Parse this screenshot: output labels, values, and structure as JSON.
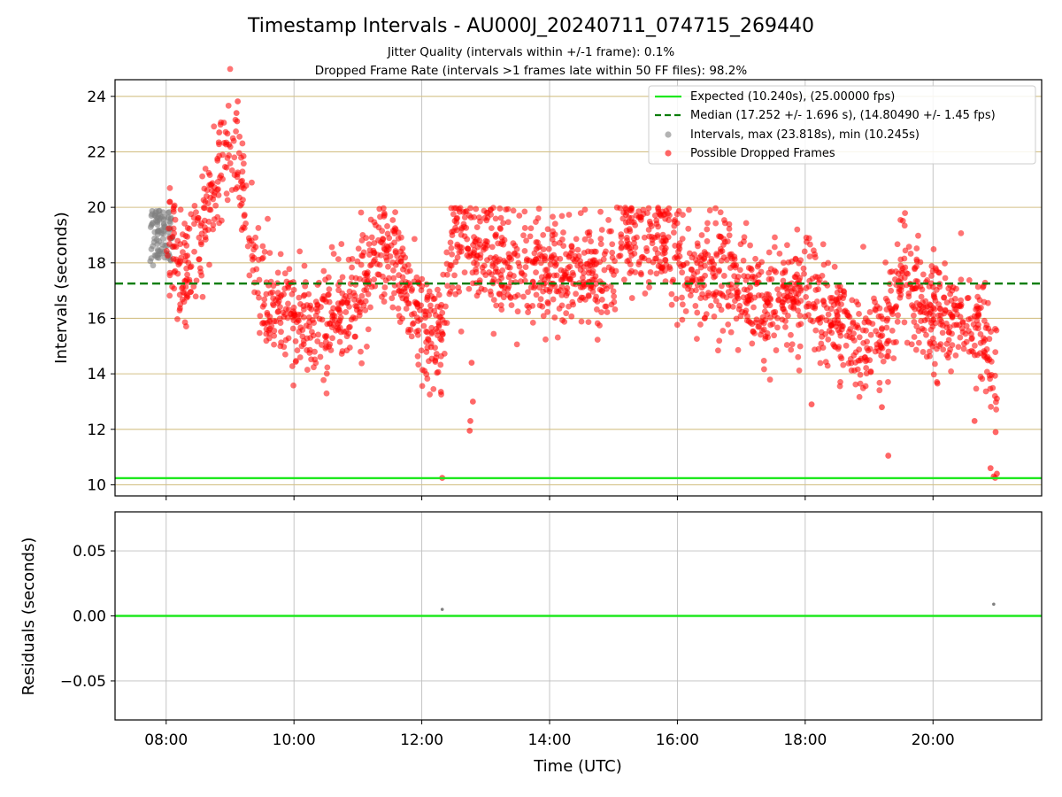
{
  "chart_data": [
    {
      "type": "scatter",
      "title": "Timestamp Intervals - AU000J_20240711_074715_269440",
      "subtitles": [
        "Jitter Quality (intervals within +/-1 frame): 0.1%",
        "Dropped Frame Rate (intervals >1 frames late within 50 FF files): 98.2%"
      ],
      "xlabel": "",
      "ylabel": "Intervals (seconds)",
      "x_unit": "hours UTC",
      "xlim": [
        7.2,
        21.7
      ],
      "ylim": [
        9.6,
        24.6
      ],
      "yticks": [
        10,
        12,
        14,
        16,
        18,
        20,
        22,
        24
      ],
      "ytick_labels": [
        "10",
        "12",
        "14",
        "16",
        "18",
        "20",
        "22",
        "24"
      ],
      "hlines": [
        {
          "name": "Expected (10.240s), (25.00000 fps)",
          "y": 10.24,
          "color": "#1ee81e",
          "style": "solid"
        },
        {
          "name": "Median (17.252 +/- 1.696 s), (14.80490 +/- 1.45 fps)",
          "y": 17.252,
          "color": "#0a7d0a",
          "style": "dashed"
        }
      ],
      "series": [
        {
          "name": "Intervals, max (23.818s), min (10.245s)",
          "color": "#808080",
          "x_range": [
            7.75,
            8.1
          ],
          "y_range": [
            17.9,
            19.9
          ]
        },
        {
          "name": "Possible Dropped Frames",
          "color": "#ff0000",
          "trend": [
            [
              8.0,
              19.2
            ],
            [
              8.25,
              17.5
            ],
            [
              8.5,
              18.6
            ],
            [
              8.75,
              20.8
            ],
            [
              8.9,
              21.6
            ],
            [
              9.1,
              21.9
            ],
            [
              9.3,
              19.0
            ],
            [
              9.5,
              17.0
            ],
            [
              10.0,
              16.0
            ],
            [
              10.5,
              15.8
            ],
            [
              11.0,
              16.7
            ],
            [
              11.3,
              18.4
            ],
            [
              11.6,
              17.7
            ],
            [
              12.0,
              16.0
            ],
            [
              12.3,
              15.3
            ],
            [
              12.5,
              18.8
            ],
            [
              13.0,
              18.6
            ],
            [
              13.5,
              17.9
            ],
            [
              14.0,
              17.5
            ],
            [
              14.5,
              17.8
            ],
            [
              15.0,
              17.2
            ],
            [
              15.2,
              19.0
            ],
            [
              15.8,
              18.8
            ],
            [
              16.3,
              17.5
            ],
            [
              16.8,
              17.8
            ],
            [
              17.2,
              16.8
            ],
            [
              17.6,
              16.5
            ],
            [
              18.0,
              17.2
            ],
            [
              18.5,
              15.6
            ],
            [
              19.0,
              14.8
            ],
            [
              19.3,
              15.4
            ],
            [
              19.5,
              17.5
            ],
            [
              20.0,
              16.1
            ],
            [
              20.5,
              15.9
            ],
            [
              20.8,
              15.2
            ],
            [
              21.0,
              13.5
            ]
          ],
          "outliers": [
            {
              "x": 12.32,
              "y": 10.25
            },
            {
              "x": 12.3,
              "y": 13.35
            },
            {
              "x": 12.75,
              "y": 11.95
            },
            {
              "x": 12.76,
              "y": 12.3
            },
            {
              "x": 12.8,
              "y": 13.0
            },
            {
              "x": 12.78,
              "y": 14.4
            },
            {
              "x": 9.12,
              "y": 23.818
            },
            {
              "x": 9.1,
              "y": 23.4
            },
            {
              "x": 9.11,
              "y": 23.1
            },
            {
              "x": 8.83,
              "y": 22.7
            },
            {
              "x": 18.1,
              "y": 12.9
            },
            {
              "x": 19.3,
              "y": 11.05
            },
            {
              "x": 19.2,
              "y": 12.8
            },
            {
              "x": 20.9,
              "y": 10.6
            },
            {
              "x": 20.95,
              "y": 10.3
            },
            {
              "x": 21.0,
              "y": 10.4
            },
            {
              "x": 20.98,
              "y": 11.9
            },
            {
              "x": 20.65,
              "y": 12.3
            }
          ]
        }
      ],
      "grid": {
        "y_color": "#d4c187",
        "x": true
      },
      "legend_position": "upper-right"
    },
    {
      "type": "scatter",
      "xlabel": "Time (UTC)",
      "ylabel": "Residuals (seconds)",
      "xlim": [
        7.2,
        21.7
      ],
      "ylim": [
        -0.08,
        0.08
      ],
      "xticks": [
        8,
        10,
        12,
        14,
        16,
        18,
        20
      ],
      "xtick_labels": [
        "08:00",
        "10:00",
        "12:00",
        "14:00",
        "16:00",
        "18:00",
        "20:00"
      ],
      "yticks": [
        0.05,
        0.0,
        -0.05
      ],
      "ytick_labels": [
        "0.05",
        "0.00",
        "−0.05"
      ],
      "hline": {
        "y": 0.0,
        "color": "#1ee81e"
      },
      "points": [
        {
          "x": 12.32,
          "y": 0.005
        },
        {
          "x": 20.95,
          "y": 0.009
        }
      ],
      "grid": true
    }
  ]
}
